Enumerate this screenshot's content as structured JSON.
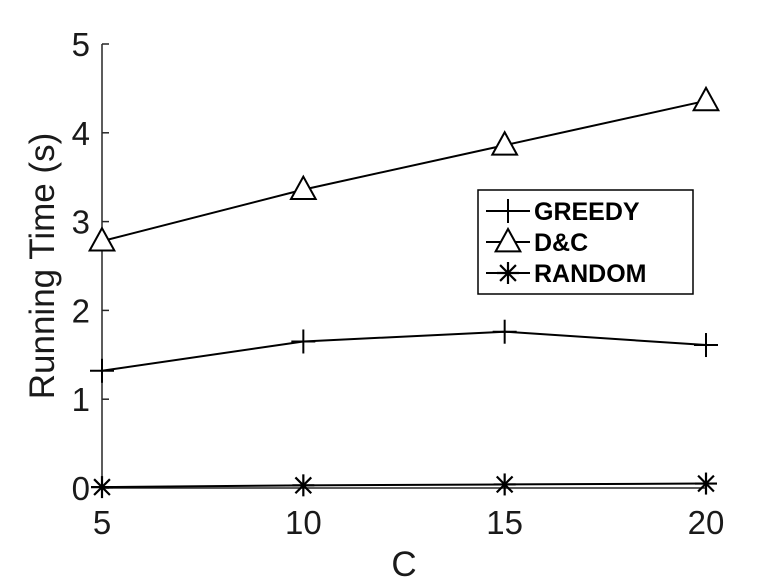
{
  "chart_data": {
    "type": "line",
    "title": "",
    "xlabel": "C",
    "ylabel": "Running Time (s)",
    "x": [
      5,
      10,
      15,
      20
    ],
    "xticks": [
      "5",
      "10",
      "15",
      "20"
    ],
    "yticks": [
      "0",
      "1",
      "2",
      "3",
      "4",
      "5"
    ],
    "xlim": [
      5,
      20
    ],
    "ylim": [
      0,
      5
    ],
    "grid": false,
    "legend_position": "right",
    "series": [
      {
        "name": "GREEDY",
        "marker": "plus",
        "values": [
          1.32,
          1.65,
          1.76,
          1.61
        ]
      },
      {
        "name": "D&C",
        "marker": "triangle",
        "values": [
          2.78,
          3.36,
          3.86,
          4.36
        ]
      },
      {
        "name": "RANDOM",
        "marker": "asterisk",
        "values": [
          0.01,
          0.03,
          0.04,
          0.05
        ]
      }
    ],
    "line_color": "#000000"
  }
}
